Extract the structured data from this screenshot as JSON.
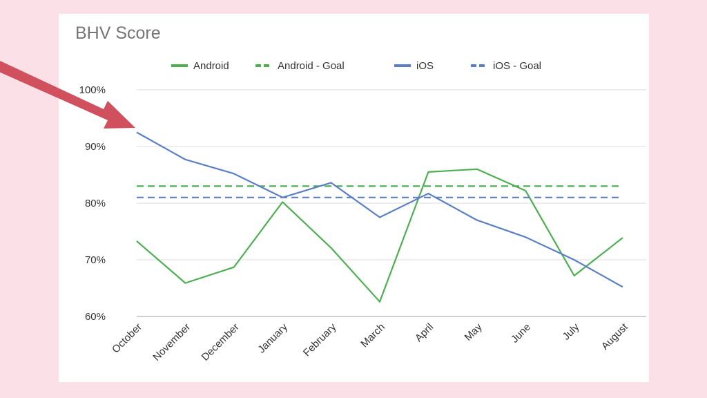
{
  "colors": {
    "background": "#fbe0e8",
    "android": "#4caf50",
    "ios": "#5b7fc7",
    "arrow": "#d0505e"
  },
  "chart_data": {
    "type": "line",
    "title": "BHV Score",
    "xlabel": "",
    "ylabel": "",
    "categories": [
      "October",
      "November",
      "December",
      "January",
      "February",
      "March",
      "April",
      "May",
      "June",
      "July",
      "August"
    ],
    "ylim": [
      0.6,
      1.0
    ],
    "yticks": [
      "60%",
      "70%",
      "80%",
      "90%",
      "100%"
    ],
    "ytick_values": [
      0.6,
      0.7,
      0.8,
      0.9,
      1.0
    ],
    "grid": true,
    "legend_position": "top",
    "series": [
      {
        "name": "Android",
        "style": "solid",
        "color": "#4caf50",
        "values": [
          0.733,
          0.659,
          0.687,
          0.802,
          0.721,
          0.626,
          0.855,
          0.86,
          0.822,
          0.672,
          0.739
        ]
      },
      {
        "name": "Android - Goal",
        "style": "dashed",
        "color": "#4caf50",
        "values": [
          0.83,
          0.83,
          0.83,
          0.83,
          0.83,
          0.83,
          0.83,
          0.83,
          0.83,
          0.83,
          0.83
        ]
      },
      {
        "name": "iOS",
        "style": "solid",
        "color": "#5b7fc7",
        "values": [
          0.925,
          0.877,
          0.852,
          0.81,
          0.836,
          0.775,
          0.817,
          0.77,
          0.74,
          0.7,
          0.652
        ]
      },
      {
        "name": "iOS - Goal",
        "style": "dashed",
        "color": "#5b7fc7",
        "values": [
          0.81,
          0.81,
          0.81,
          0.81,
          0.81,
          0.81,
          0.81,
          0.81,
          0.81,
          0.81,
          0.81
        ]
      }
    ],
    "annotations": [
      {
        "type": "arrow",
        "points_to": "October iOS value"
      }
    ]
  }
}
